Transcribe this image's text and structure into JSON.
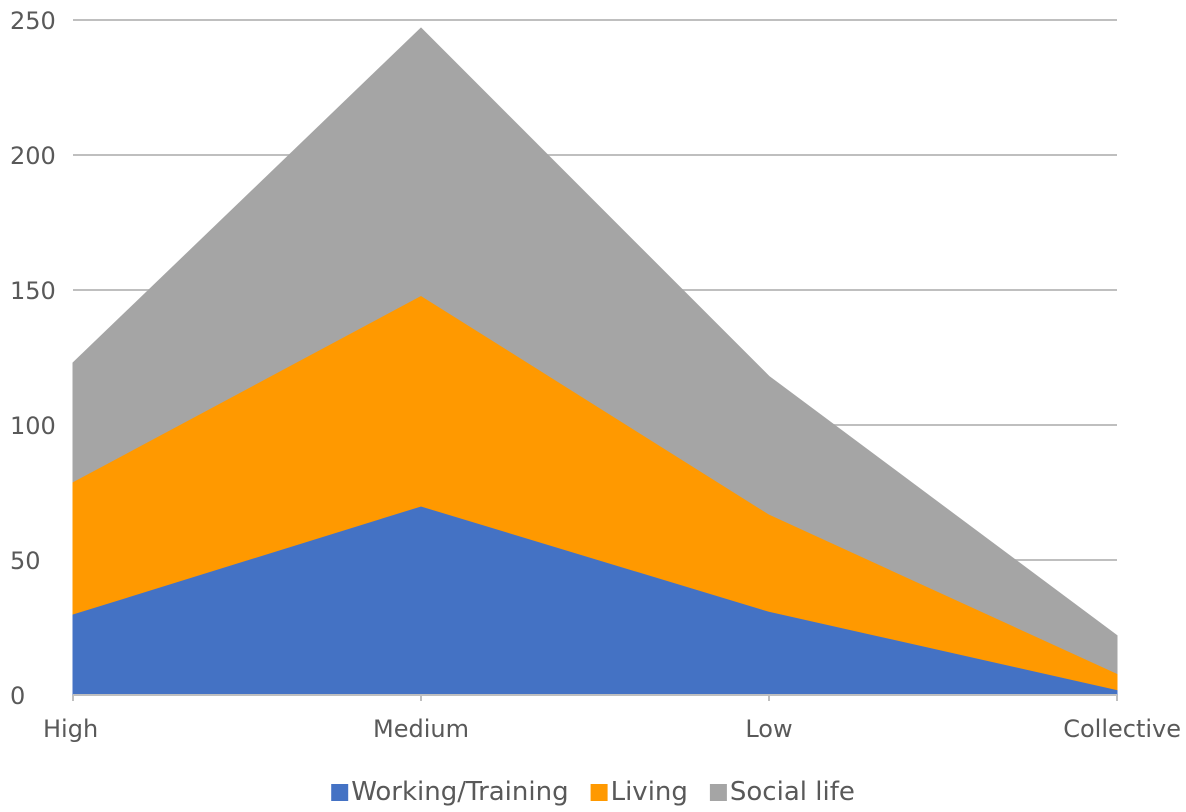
{
  "chart_data": {
    "type": "area",
    "stacked": true,
    "categories": [
      "High",
      "Medium",
      "Low",
      "Collective"
    ],
    "series": [
      {
        "name": "Working/Training",
        "values": [
          30,
          70,
          31,
          2
        ],
        "color": "#4472C4"
      },
      {
        "name": "Living",
        "values": [
          49,
          78,
          36,
          6
        ],
        "color": "#FF9900"
      },
      {
        "name": "Social life",
        "values": [
          44,
          99,
          51,
          14
        ],
        "color": "#A5A5A5"
      }
    ],
    "ylim": [
      0,
      250
    ],
    "yticks": [
      0,
      50,
      100,
      150,
      200,
      250
    ],
    "grid": true,
    "legend_position": "bottom",
    "title": "",
    "xlabel": "",
    "ylabel": ""
  }
}
